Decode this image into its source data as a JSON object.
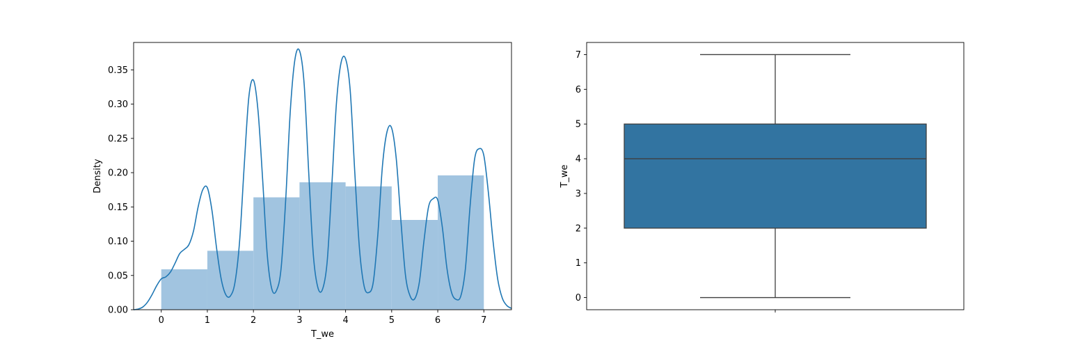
{
  "colors": {
    "hist_fill": "#a1c4e0",
    "kde_line": "#1f77b4",
    "box_fill": "#3274a1",
    "box_line": "#3f3f3f",
    "axes": "#000000"
  },
  "chart_data": [
    {
      "type": "bar",
      "subtype": "histogram-with-kde",
      "xlabel": "T_we",
      "ylabel": "Density",
      "xlim": [
        -0.6,
        7.6
      ],
      "ylim": [
        0,
        0.39
      ],
      "x_ticks": [
        0,
        1,
        2,
        3,
        4,
        5,
        6,
        7
      ],
      "y_ticks": [
        0.0,
        0.05,
        0.1,
        0.15,
        0.2,
        0.25,
        0.3,
        0.35
      ],
      "y_tick_labels": [
        "0.00",
        "0.05",
        "0.10",
        "0.15",
        "0.20",
        "0.25",
        "0.30",
        "0.35"
      ],
      "histogram": {
        "bin_edges": [
          0,
          1,
          2,
          3,
          4,
          5,
          6,
          7
        ],
        "densities": [
          0.059,
          0.086,
          0.164,
          0.186,
          0.18,
          0.131,
          0.196
        ]
      },
      "kde": {
        "x": [
          -0.6,
          -0.5,
          -0.4,
          -0.3,
          -0.2,
          -0.1,
          0.0,
          0.1,
          0.2,
          0.3,
          0.4,
          0.5,
          0.6,
          0.7,
          0.8,
          0.9,
          1.0,
          1.1,
          1.2,
          1.3,
          1.4,
          1.5,
          1.6,
          1.7,
          1.8,
          1.9,
          2.0,
          2.1,
          2.2,
          2.3,
          2.4,
          2.5,
          2.6,
          2.7,
          2.8,
          2.9,
          3.0,
          3.1,
          3.2,
          3.3,
          3.4,
          3.5,
          3.6,
          3.7,
          3.8,
          3.9,
          4.0,
          4.1,
          4.2,
          4.3,
          4.4,
          4.5,
          4.6,
          4.7,
          4.8,
          4.9,
          5.0,
          5.1,
          5.2,
          5.3,
          5.4,
          5.5,
          5.6,
          5.7,
          5.8,
          5.9,
          6.0,
          6.1,
          6.2,
          6.3,
          6.4,
          6.5,
          6.6,
          6.7,
          6.8,
          6.9,
          7.0,
          7.1,
          7.2,
          7.3,
          7.4,
          7.5,
          7.6
        ],
        "y": [
          0.0,
          0.001,
          0.004,
          0.011,
          0.022,
          0.035,
          0.045,
          0.048,
          0.055,
          0.068,
          0.082,
          0.088,
          0.095,
          0.115,
          0.15,
          0.175,
          0.178,
          0.145,
          0.09,
          0.045,
          0.022,
          0.02,
          0.04,
          0.1,
          0.21,
          0.31,
          0.335,
          0.29,
          0.19,
          0.08,
          0.03,
          0.028,
          0.06,
          0.16,
          0.29,
          0.365,
          0.378,
          0.33,
          0.2,
          0.08,
          0.032,
          0.03,
          0.07,
          0.18,
          0.3,
          0.36,
          0.366,
          0.32,
          0.2,
          0.09,
          0.035,
          0.025,
          0.04,
          0.11,
          0.21,
          0.26,
          0.265,
          0.22,
          0.13,
          0.05,
          0.02,
          0.016,
          0.04,
          0.1,
          0.15,
          0.162,
          0.16,
          0.12,
          0.06,
          0.025,
          0.015,
          0.02,
          0.06,
          0.15,
          0.22,
          0.235,
          0.225,
          0.17,
          0.1,
          0.045,
          0.017,
          0.006,
          0.002
        ]
      },
      "grid": false
    },
    {
      "type": "box",
      "xlabel": "",
      "ylabel": "T_we",
      "ylim": [
        -0.35,
        7.35
      ],
      "y_ticks": [
        0,
        1,
        2,
        3,
        4,
        5,
        6,
        7
      ],
      "y_tick_labels": [
        "0",
        "1",
        "2",
        "3",
        "4",
        "5",
        "6",
        "7"
      ],
      "stats": {
        "whisker_low": 0,
        "q1": 2,
        "median": 4,
        "q3": 5,
        "whisker_high": 7
      },
      "grid": false
    }
  ]
}
